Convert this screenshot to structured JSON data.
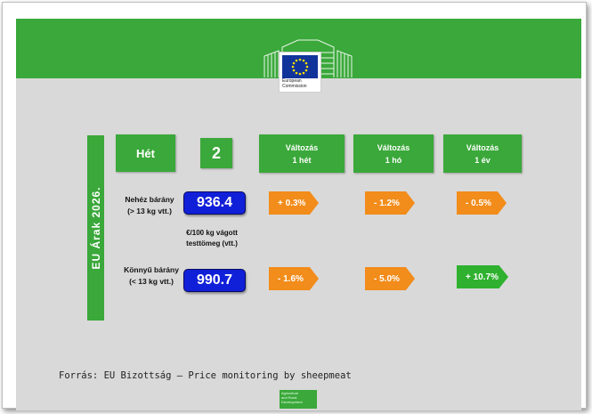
{
  "header": {
    "logo_line1": "European",
    "logo_line2": "Commission"
  },
  "sidebar": {
    "title": "EU Árak 2026."
  },
  "week": {
    "label": "Hét",
    "value": "2"
  },
  "changes": {
    "col1": {
      "line1": "Változás",
      "line2": "1 hét"
    },
    "col2": {
      "line1": "Változás",
      "line2": "1 hó"
    },
    "col3": {
      "line1": "Változás",
      "line2": "1 év"
    }
  },
  "unit": {
    "line1": "€/100 kg vágott",
    "line2": "testtömeg (vtt.)"
  },
  "rows": [
    {
      "name_line1": "Nehéz bárány",
      "name_line2": "(> 13 kg vtt.)",
      "price": "936.4",
      "week_change": "+ 0.3%",
      "month_change": "- 1.2%",
      "year_change": "- 0.5%"
    },
    {
      "name_line1": "Könnyű bárány",
      "name_line2": "(< 13 kg vtt.)",
      "price": "990.7",
      "week_change": "- 1.6%",
      "month_change": "- 5.0%",
      "year_change": "+ 10.7%"
    }
  ],
  "colors": {
    "green": "#3aa83a",
    "orange": "#f28c1a",
    "price_blue": "#1020d8"
  },
  "source": "Forrás: EU Bizottság – Price monitoring by sheepmeat",
  "footer": {
    "line1": "Agriculture",
    "line2": "and Rural",
    "line3": "Development"
  }
}
